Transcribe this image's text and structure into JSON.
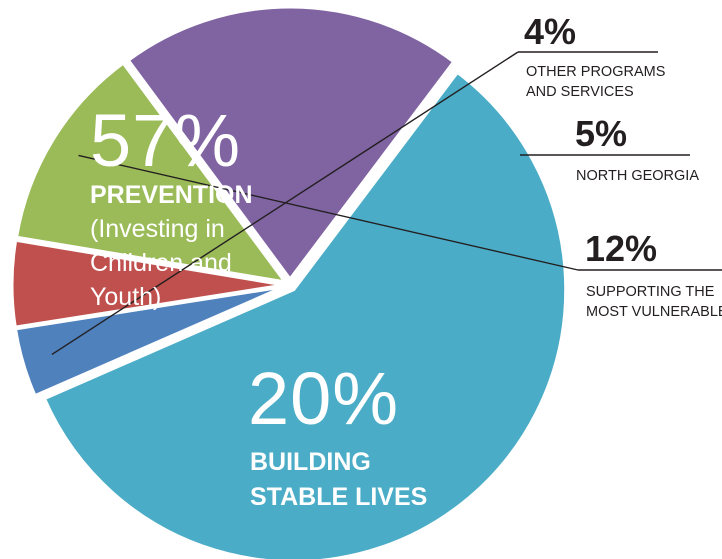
{
  "chart_data": {
    "type": "pie",
    "slices": [
      {
        "percent_label": "57%",
        "value": 57,
        "label_lines": [
          "PREVENTION",
          "(Investing in",
          "Children and",
          "Youth)"
        ],
        "color": "#4aacc6"
      },
      {
        "percent_label": "4%",
        "value": 4,
        "label_lines": [
          "OTHER PROGRAMS",
          "AND SERVICES"
        ],
        "color": "#4f81bd"
      },
      {
        "percent_label": "5%",
        "value": 5,
        "label_lines": [
          "NORTH GEORGIA"
        ],
        "color": "#c0504d"
      },
      {
        "percent_label": "12%",
        "value": 12,
        "label_lines": [
          "SUPPORTING THE",
          "MOST VULNERABLE"
        ],
        "color": "#9bbb59"
      },
      {
        "percent_label": "20%",
        "value": 20,
        "label_lines": [
          "BUILDING",
          "STABLE LIVES"
        ],
        "color": "#8064a2"
      }
    ]
  }
}
